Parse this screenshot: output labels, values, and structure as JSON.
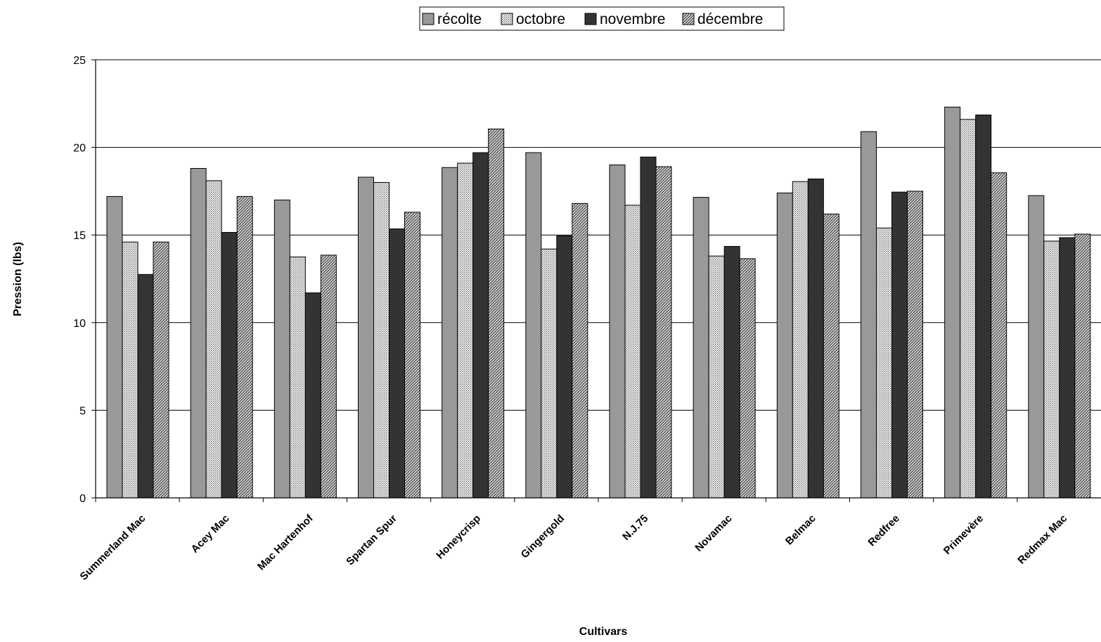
{
  "chart_data": {
    "type": "bar",
    "title": "",
    "xlabel": "Cultivars",
    "ylabel": "Pression (lbs)",
    "ylim": [
      0,
      25
    ],
    "yticks": [
      0,
      5,
      10,
      15,
      20,
      25
    ],
    "grid": true,
    "legend_position": "top-center",
    "categories": [
      "Summerland Mac",
      "Acey Mac",
      "Mac Hartenhof",
      "Spartan Spur",
      "Honeycrisp",
      "Gingergold",
      "N.J.75",
      "Novamac",
      "Belmac",
      "Redfree",
      "Primevère",
      "Redmax Mac"
    ],
    "series": [
      {
        "name": "récolte",
        "color": "#999999",
        "pattern": "solid-gray",
        "values": [
          17.2,
          18.8,
          17.0,
          18.3,
          18.85,
          19.7,
          19.0,
          17.15,
          17.4,
          20.9,
          22.3,
          17.25
        ]
      },
      {
        "name": "octobre",
        "color": "#e0e0e0",
        "pattern": "dots",
        "values": [
          14.6,
          18.1,
          13.75,
          18.0,
          19.1,
          14.2,
          16.7,
          13.8,
          18.05,
          15.4,
          21.6,
          14.65
        ]
      },
      {
        "name": "novembre",
        "color": "#333333",
        "pattern": "solid-dark",
        "values": [
          12.75,
          15.15,
          11.7,
          15.35,
          19.7,
          14.95,
          19.45,
          14.35,
          18.2,
          17.45,
          21.85,
          14.85
        ]
      },
      {
        "name": "décembre",
        "color": "#b0b0b0",
        "pattern": "diagonal-hatch",
        "values": [
          14.6,
          17.2,
          13.85,
          16.3,
          21.05,
          16.8,
          18.9,
          13.65,
          16.2,
          17.5,
          18.55,
          15.05
        ]
      }
    ]
  }
}
